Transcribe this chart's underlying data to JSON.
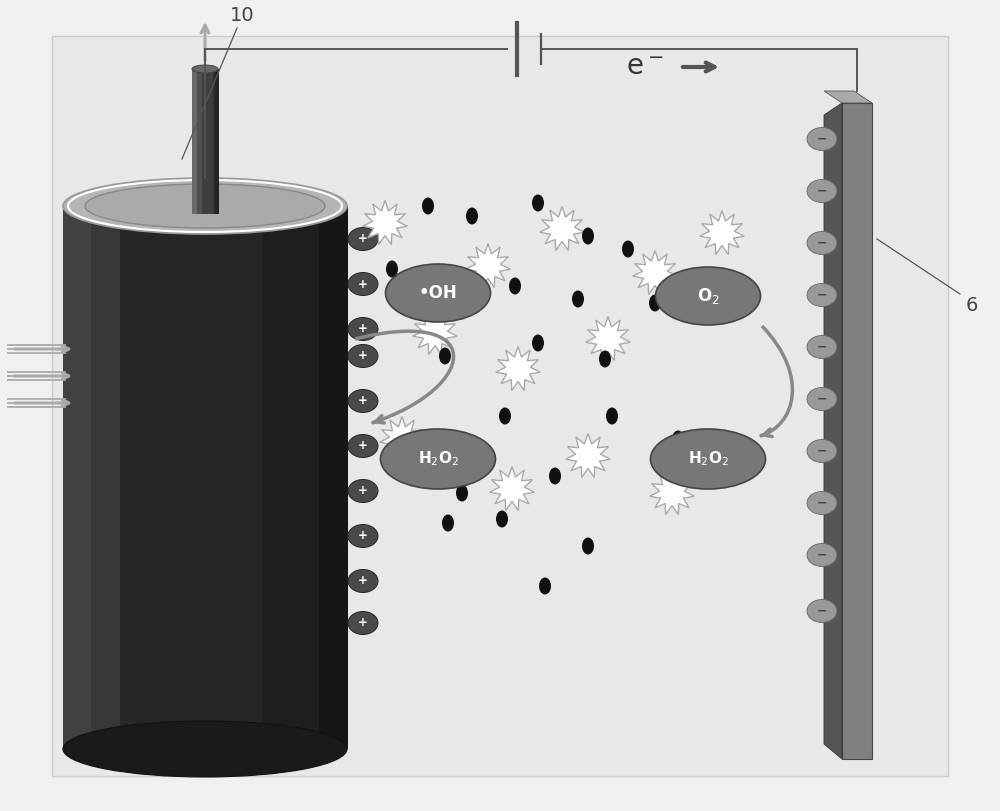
{
  "fig_bg": "#f0f0f0",
  "panel_bg": "#e8e8e8",
  "panel_edge": "#cccccc",
  "cyl_body": "#2a2a2a",
  "cyl_left_hi": "#505050",
  "cyl_top_face": "#b5b5b5",
  "cyl_inner": "#999999",
  "tube_body": "#606060",
  "tube_hi": "#888888",
  "tube_dark": "#3a3a3a",
  "plus_ball": "#4a4a4a",
  "minus_ball": "#999999",
  "minus_ball_edge": "#666666",
  "electrode_main": "#808080",
  "electrode_side": "#555555",
  "electrode_top": "#aaaaaa",
  "circuit_line": "#555555",
  "ellipse_fill": "#777777",
  "ellipse_edge": "#444444",
  "spark_fill": "#ffffff",
  "spark_edge": "#aaaaaa",
  "dot_color": "#111111",
  "curve_arrow": "#888888",
  "flow_arrow": "#aaaaaa",
  "up_arrow": "#aaaaaa",
  "label_color": "#444444",
  "pointer_line": "#555555"
}
